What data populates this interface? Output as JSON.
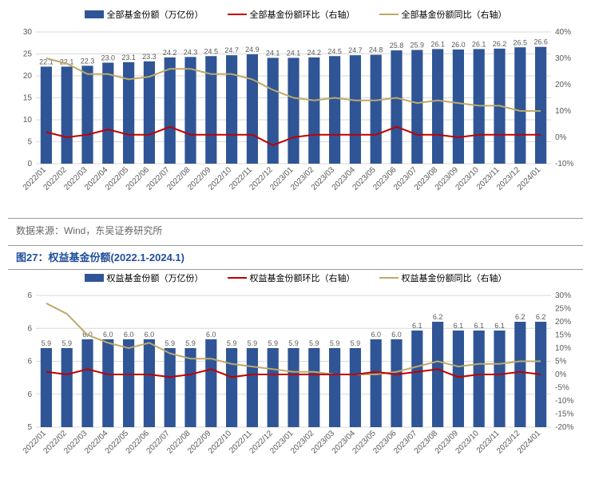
{
  "chart1": {
    "type": "bar+line",
    "legend": [
      {
        "label": "全部基金份额（万亿份）",
        "color": "#2f5597",
        "kind": "bar"
      },
      {
        "label": "全部基金份额环比（右轴）",
        "color": "#c00000",
        "kind": "line"
      },
      {
        "label": "全部基金份额同比（右轴）",
        "color": "#bfa86a",
        "kind": "line"
      }
    ],
    "categories": [
      "2022/01",
      "2022/02",
      "2022/03",
      "2022/04",
      "2022/05",
      "2022/06",
      "2022/07",
      "2022/08",
      "2022/09",
      "2022/10",
      "2022/11",
      "2022/12",
      "2023/01",
      "2023/02",
      "2023/03",
      "2023/04",
      "2023/05",
      "2023/06",
      "2023/07",
      "2023/08",
      "2023/09",
      "2023/10",
      "2023/11",
      "2023/12",
      "2024/01"
    ],
    "bar_values": [
      22.1,
      22.1,
      22.3,
      23.0,
      23.1,
      23.3,
      24.2,
      24.3,
      24.5,
      24.7,
      24.9,
      24.1,
      24.1,
      24.2,
      24.5,
      24.7,
      24.8,
      25.8,
      25.9,
      26.1,
      26.0,
      26.1,
      26.2,
      26.5,
      26.6
    ],
    "line_mom": [
      2,
      0,
      1,
      3,
      1,
      1,
      4,
      1,
      1,
      1,
      1,
      -3,
      0,
      1,
      1,
      1,
      1,
      4,
      1,
      1,
      0,
      1,
      1,
      1,
      1
    ],
    "line_yoy": [
      30,
      28,
      24,
      24,
      22,
      23,
      26,
      26,
      24,
      24,
      22,
      18,
      15,
      14,
      15,
      14,
      14,
      15,
      13,
      14,
      13,
      12,
      12,
      10,
      10
    ],
    "y_left": {
      "min": 0,
      "max": 30,
      "step": 5
    },
    "y_right": {
      "min": -10,
      "max": 40,
      "step": 10
    },
    "colors": {
      "bar": "#2f5597",
      "mom": "#c00000",
      "yoy": "#bfa86a",
      "grid": "#d9d9d9",
      "text": "#595959",
      "bg": "#ffffff"
    },
    "fontsize": {
      "axis": 10,
      "datalabel": 9
    }
  },
  "source_note": "数据来源：Wind，东吴证券研究所",
  "fig27_title": "图27：权益基金份额(2022.1-2024.1)",
  "chart2": {
    "type": "bar+line",
    "legend": [
      {
        "label": "权益基金份额（万亿份）",
        "color": "#2f5597",
        "kind": "bar"
      },
      {
        "label": "权益基金份额环比（右轴）",
        "color": "#c00000",
        "kind": "line"
      },
      {
        "label": "权益基金份额同比（右轴）",
        "color": "#bfa86a",
        "kind": "line"
      }
    ],
    "categories": [
      "2022/01",
      "2022/02",
      "2022/03",
      "2022/04",
      "2022/05",
      "2022/06",
      "2022/07",
      "2022/08",
      "2022/09",
      "2022/10",
      "2022/11",
      "2022/12",
      "2023/01",
      "2023/02",
      "2023/03",
      "2023/04",
      "2023/05",
      "2023/06",
      "2023/07",
      "2023/08",
      "2023/09",
      "2023/10",
      "2023/11",
      "2023/12",
      "2024/01"
    ],
    "bar_values": [
      5.9,
      5.9,
      6.0,
      6.0,
      6.0,
      6.0,
      5.9,
      5.9,
      6.0,
      5.9,
      5.9,
      5.9,
      5.9,
      5.9,
      5.9,
      5.9,
      6.0,
      6.0,
      6.1,
      6.2,
      6.1,
      6.1,
      6.1,
      6.2,
      6.2
    ],
    "line_mom": [
      1,
      0,
      2,
      0,
      0,
      0,
      -1,
      0,
      2,
      -1,
      0,
      0,
      0,
      0,
      0,
      0,
      1,
      0,
      1,
      2,
      -1,
      0,
      0,
      1,
      0
    ],
    "line_yoy": [
      27,
      23,
      15,
      12,
      10,
      12,
      8,
      6,
      6,
      4,
      3,
      2,
      1,
      1,
      0,
      0,
      0,
      1,
      3,
      5,
      3,
      4,
      4,
      5,
      5
    ],
    "y_left": {
      "min": 5,
      "max": 6,
      "step": 1,
      "ticks": [
        5,
        6,
        6,
        6,
        6
      ]
    },
    "y_right": {
      "min": -20,
      "max": 30,
      "step": 5
    },
    "colors": {
      "bar": "#2f5597",
      "mom": "#c00000",
      "yoy": "#bfa86a",
      "grid": "#d9d9d9",
      "text": "#595959",
      "bg": "#ffffff"
    },
    "fontsize": {
      "axis": 10,
      "datalabel": 9
    }
  }
}
